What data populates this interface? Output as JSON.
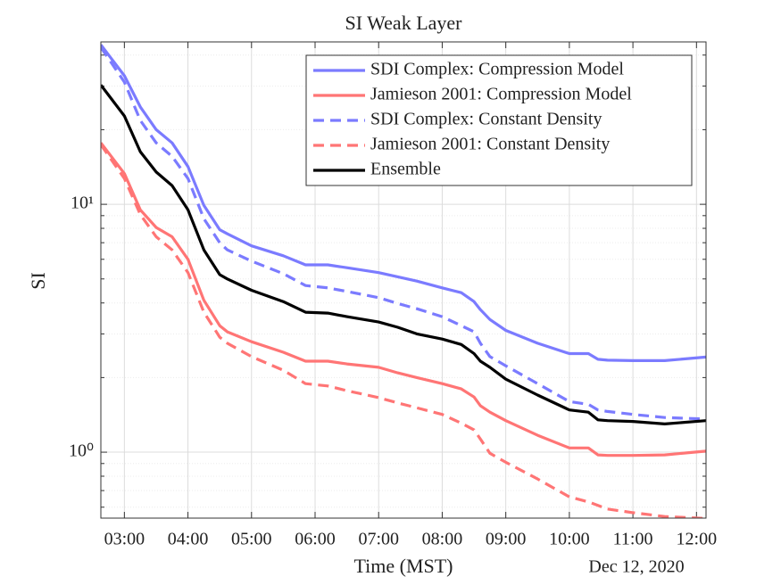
{
  "chart_data": {
    "type": "line",
    "title": "SI Weak Layer",
    "xlabel": "Time (MST)",
    "ylabel": "SI",
    "date_label": "Dec 12, 2020",
    "x": [
      2.63,
      3.0,
      3.25,
      3.5,
      3.75,
      4.0,
      4.25,
      4.5,
      4.62,
      5.0,
      5.5,
      5.85,
      6.2,
      6.5,
      7.0,
      7.3,
      7.6,
      8.0,
      8.3,
      8.5,
      8.6,
      8.75,
      9.0,
      9.5,
      10.0,
      10.3,
      10.45,
      10.6,
      11.0,
      11.5,
      12.15
    ],
    "series": [
      {
        "name": "SDI Complex: Compression Model",
        "color": "#7b7bff",
        "dash": false,
        "values": [
          44,
          33,
          24.7,
          20,
          17.7,
          14.2,
          9.9,
          7.9,
          7.6,
          6.8,
          6.2,
          5.7,
          5.7,
          5.55,
          5.3,
          5.1,
          4.9,
          4.6,
          4.4,
          4.05,
          3.76,
          3.43,
          3.1,
          2.75,
          2.5,
          2.5,
          2.37,
          2.35,
          2.34,
          2.34,
          2.42
        ]
      },
      {
        "name": "Jamieson 2001: Compression Model",
        "color": "#ff7575",
        "dash": false,
        "values": [
          17.7,
          13.3,
          9.5,
          8.06,
          7.4,
          6.0,
          4.1,
          3.24,
          3.06,
          2.79,
          2.53,
          2.33,
          2.33,
          2.27,
          2.2,
          2.09,
          2.0,
          1.89,
          1.8,
          1.67,
          1.54,
          1.45,
          1.34,
          1.17,
          1.04,
          1.04,
          0.975,
          0.97,
          0.97,
          0.975,
          1.01
        ]
      },
      {
        "name": "SDI Complex: Constant Density",
        "color": "#7b7bff",
        "dash": true,
        "values": [
          43,
          31.1,
          21.8,
          17.7,
          15.6,
          12.7,
          8.75,
          7.0,
          6.55,
          5.9,
          5.25,
          4.7,
          4.6,
          4.45,
          4.2,
          3.98,
          3.79,
          3.52,
          3.24,
          3.06,
          2.75,
          2.43,
          2.23,
          1.89,
          1.6,
          1.56,
          1.48,
          1.46,
          1.42,
          1.38,
          1.36
        ]
      },
      {
        "name": "Jamieson 2001: Constant Density",
        "color": "#ff7575",
        "dash": true,
        "values": [
          17.4,
          12.7,
          9.1,
          7.4,
          6.55,
          5.3,
          3.67,
          2.91,
          2.75,
          2.43,
          2.14,
          1.89,
          1.85,
          1.77,
          1.66,
          1.58,
          1.51,
          1.42,
          1.31,
          1.23,
          1.13,
          0.99,
          0.91,
          0.78,
          0.66,
          0.63,
          0.61,
          0.59,
          0.57,
          0.55,
          0.54
        ]
      },
      {
        "name": "Ensemble",
        "color": "#000000",
        "dash": false,
        "values": [
          30.3,
          22.7,
          16.3,
          13.5,
          11.9,
          9.5,
          6.55,
          5.2,
          5.0,
          4.5,
          4.05,
          3.67,
          3.64,
          3.52,
          3.35,
          3.19,
          3.0,
          2.86,
          2.72,
          2.5,
          2.33,
          2.2,
          1.97,
          1.7,
          1.48,
          1.45,
          1.35,
          1.34,
          1.33,
          1.3,
          1.34
        ]
      }
    ],
    "xlim": [
      2.63,
      12.15
    ],
    "xticks": [
      {
        "value": 3,
        "label": "03:00"
      },
      {
        "value": 4,
        "label": "04:00"
      },
      {
        "value": 5,
        "label": "05:00"
      },
      {
        "value": 6,
        "label": "06:00"
      },
      {
        "value": 7,
        "label": "07:00"
      },
      {
        "value": 8,
        "label": "08:00"
      },
      {
        "value": 9,
        "label": "09:00"
      },
      {
        "value": 10,
        "label": "10:00"
      },
      {
        "value": 11,
        "label": "11:00"
      },
      {
        "value": 12,
        "label": "12:00"
      }
    ],
    "ylim": [
      0.542,
      45.2
    ],
    "ylog": true,
    "yticks": [
      {
        "value": 1,
        "label": "10⁰"
      },
      {
        "value": 10,
        "label": "10¹"
      }
    ],
    "yminorticks": [
      0.6,
      0.7,
      0.8,
      0.9,
      2,
      3,
      4,
      5,
      6,
      7,
      8,
      9,
      20,
      30,
      40
    ],
    "grid": true,
    "legend": "northeast"
  }
}
